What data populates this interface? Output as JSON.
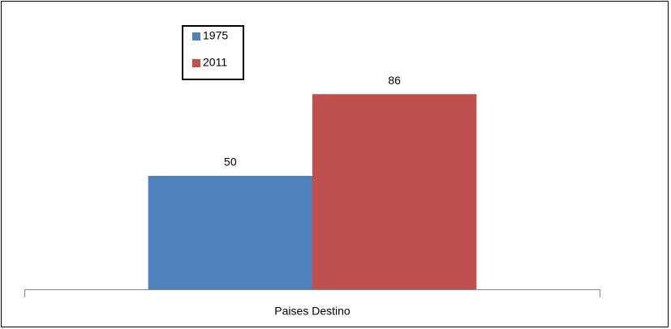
{
  "chart_data": {
    "type": "bar",
    "categories": [
      "Paises Destino"
    ],
    "series": [
      {
        "name": "1975",
        "color": "#4f81bd",
        "values": [
          50
        ]
      },
      {
        "name": "2011",
        "color": "#c0504d",
        "values": [
          86
        ]
      }
    ],
    "ylim": [
      0,
      100
    ],
    "legend": "top-left"
  }
}
